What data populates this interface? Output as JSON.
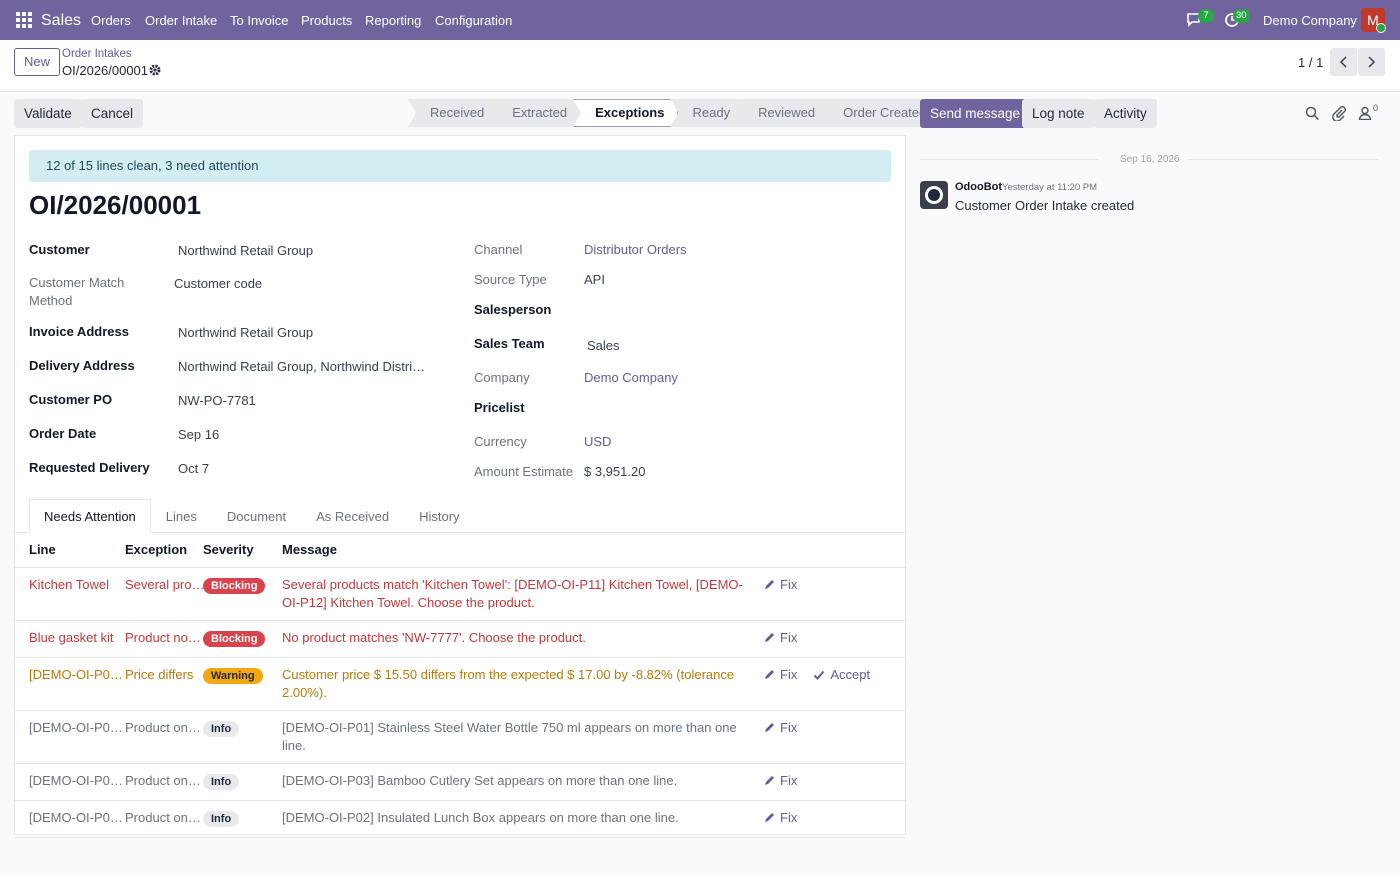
{
  "navbar": {
    "app": "Sales",
    "menu": [
      "Orders",
      "Order Intake",
      "To Invoice",
      "Products",
      "Reporting",
      "Configuration"
    ],
    "messages": 7,
    "activities": 30,
    "company": "Demo Company",
    "avatar": "M"
  },
  "control_panel": {
    "new_button": "New",
    "breadcrumb": "Order Intakes",
    "record": "OI/2026/00001",
    "pager": "1 / 1"
  },
  "actions": {
    "buttons": [
      "Validate",
      "Cancel"
    ],
    "stages": [
      "Received",
      "Extracted",
      "Exceptions",
      "Ready",
      "Reviewed",
      "Order Created"
    ],
    "current_stage": 2
  },
  "form": {
    "alert": "12 of 15 lines clean, 3 need attention",
    "title": "OI/2026/00001",
    "left_fields": [
      {
        "label": "Customer",
        "value": "Northwind Retail Group"
      },
      {
        "label": "Customer Match Method",
        "value": "Customer code"
      },
      {
        "label": "Invoice Address",
        "value": "Northwind Retail Group"
      },
      {
        "label": "Delivery Address",
        "value": "Northwind Retail Group, Northwind Distri…"
      },
      {
        "label": "Customer PO",
        "value": "NW-PO-7781"
      },
      {
        "label": "Order Date",
        "value": "Sep 16"
      },
      {
        "label": "Requested Delivery",
        "value": "Oct 7"
      }
    ],
    "right_fields": [
      {
        "label": "Channel",
        "value": "Distributor Orders",
        "link": true
      },
      {
        "label": "Source Type",
        "value": "API"
      },
      {
        "label": "Salesperson"
      },
      {
        "label": "Sales Team",
        "value": "Sales"
      },
      {
        "label": "Company",
        "value": "Demo Company",
        "link": true
      },
      {
        "label": "Pricelist"
      },
      {
        "label": "Currency",
        "value": "USD",
        "link": true
      },
      {
        "label": "Amount Estimate",
        "value": "$ 3,951.20"
      }
    ]
  },
  "tabs": {
    "items": [
      "Needs Attention",
      "Lines",
      "Document",
      "As Received",
      "History"
    ],
    "active": 0
  },
  "table": {
    "headers": [
      "Line",
      "Exception",
      "Severity",
      "Message"
    ],
    "rows": [
      {
        "line": "Kitchen Towel",
        "exception": "Several pro…",
        "severity": "Blocking",
        "message": "Several products match 'Kitchen Towel': [DEMO-OI-P11] Kitchen Towel, [DEMO-OI-P12] Kitchen Towel. Choose the product.",
        "actions": [
          "Fix"
        ],
        "color": "#c6393a",
        "badge_color": "#d9434b",
        "badge_text_color": "#ffffff"
      },
      {
        "line": "Blue gasket kit",
        "exception": "Product no…",
        "severity": "Blocking",
        "message": "No product matches 'NW-7777'. Choose the product.",
        "actions": [
          "Fix"
        ],
        "color": "#c6393a",
        "badge_color": "#d9434b",
        "badge_text_color": "#ffffff"
      },
      {
        "line": "[DEMO-OI-P0…",
        "exception": "Price differs",
        "severity": "Warning",
        "message": "Customer price $ 15.50 differs from the expected $ 17.00 by -8.82% (tolerance 2.00%).",
        "actions": [
          "Fix",
          "Accept"
        ],
        "color": "#b97a0a",
        "badge_color": "#f3a712",
        "badge_text_color": "#1f2937"
      },
      {
        "line": "[DEMO-OI-P0…",
        "exception": "Product on…",
        "severity": "Info",
        "message": "[DEMO-OI-P01] Stainless Steel Water Bottle 750 ml appears on more than one line.",
        "actions": [
          "Fix"
        ],
        "color": "#6b7280",
        "badge_color": "#e7e9ed",
        "badge_text_color": "#1f2937"
      },
      {
        "line": "[DEMO-OI-P0…",
        "exception": "Product on…",
        "severity": "Info",
        "message": "[DEMO-OI-P03] Bamboo Cutlery Set appears on more than one line.",
        "actions": [
          "Fix"
        ],
        "color": "#6b7280",
        "badge_color": "#e7e9ed",
        "badge_text_color": "#1f2937"
      },
      {
        "line": "[DEMO-OI-P0…",
        "exception": "Product on…",
        "severity": "Info",
        "message": "[DEMO-OI-P02] Insulated Lunch Box appears on more than one line.",
        "actions": [
          "Fix"
        ],
        "color": "#6b7280",
        "badge_color": "#e7e9ed",
        "badge_text_color": "#1f2937"
      }
    ]
  },
  "chatter": {
    "buttons": [
      "Send message",
      "Log note",
      "Activity"
    ],
    "followers": 0,
    "date": "Sep 16, 2026",
    "messages": [
      {
        "author": "OdooBot",
        "time": "Yesterday at 11:20 PM",
        "body": "Customer Order Intake created"
      }
    ]
  }
}
